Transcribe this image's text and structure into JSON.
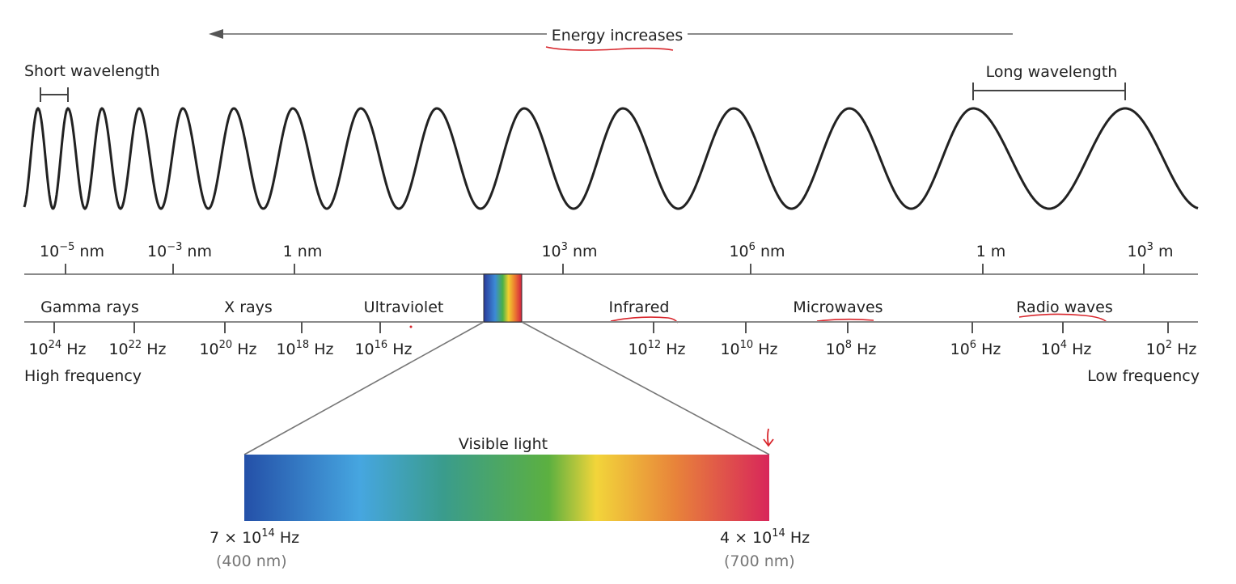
{
  "energy_label": "Energy increases",
  "short_wavelength_label": "Short wavelength",
  "long_wavelength_label": "Long wavelength",
  "wavelength_scale": [
    {
      "base": "10",
      "exp": "−5",
      "unit": " nm"
    },
    {
      "base": "10",
      "exp": "−3",
      "unit": " nm"
    },
    {
      "base": "",
      "exp": "",
      "unit": "1 nm"
    },
    {
      "base": "10",
      "exp": "3",
      "unit": " nm"
    },
    {
      "base": "10",
      "exp": "6",
      "unit": " nm"
    },
    {
      "base": "",
      "exp": "",
      "unit": "1 m"
    },
    {
      "base": "10",
      "exp": "3",
      "unit": " m"
    }
  ],
  "regions": [
    "Gamma rays",
    "X rays",
    "Ultraviolet",
    "Infrared",
    "Microwaves",
    "Radio waves"
  ],
  "frequency_scale": [
    {
      "base": "10",
      "exp": "24",
      "unit": " Hz"
    },
    {
      "base": "10",
      "exp": "22",
      "unit": " Hz"
    },
    {
      "base": "10",
      "exp": "20",
      "unit": " Hz"
    },
    {
      "base": "10",
      "exp": "18",
      "unit": " Hz"
    },
    {
      "base": "10",
      "exp": "16",
      "unit": " Hz"
    },
    {
      "base": "10",
      "exp": "12",
      "unit": " Hz"
    },
    {
      "base": "10",
      "exp": "10",
      "unit": " Hz"
    },
    {
      "base": "10",
      "exp": "8",
      "unit": " Hz"
    },
    {
      "base": "10",
      "exp": "6",
      "unit": " Hz"
    },
    {
      "base": "10",
      "exp": "4",
      "unit": " Hz"
    },
    {
      "base": "10",
      "exp": "2",
      "unit": " Hz"
    }
  ],
  "high_frequency_label": "High frequency",
  "low_frequency_label": "Low frequency",
  "visible_light_label": "Visible light",
  "visible_left": {
    "prefix": "7 × 10",
    "exp": "14",
    "unit": " Hz",
    "wavelength": "(400 nm)"
  },
  "visible_right": {
    "prefix": "4 × 10",
    "exp": "14",
    "unit": " Hz",
    "wavelength": "(700 nm)"
  },
  "colors": {
    "line": "#222222",
    "axis": "#8a8a8a",
    "annotation": "#d8262c",
    "spectrum": [
      "#2450a8",
      "#46a6e0",
      "#3a9c8c",
      "#5cb040",
      "#f2d53a",
      "#e8843a",
      "#d8265a"
    ]
  }
}
